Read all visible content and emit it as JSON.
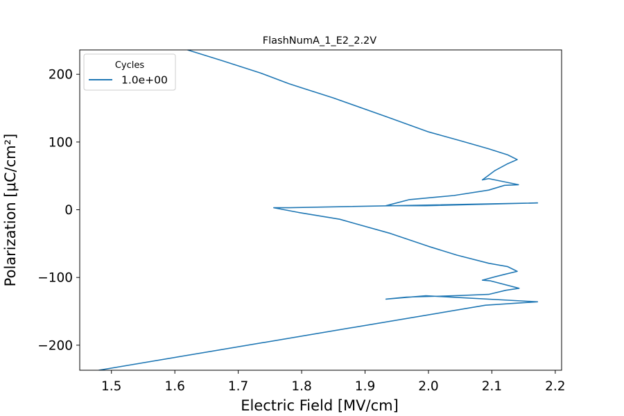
{
  "chart_data": {
    "type": "line",
    "title": "FlashNumA_1_E2_2.2V",
    "xlabel": "Electric Field [MV/cm]",
    "ylabel": "Polarization [μC/cm²]",
    "xlim": [
      1.45,
      2.21
    ],
    "ylim": [
      -237,
      236
    ],
    "xticks": [
      1.5,
      1.6,
      1.7,
      1.8,
      1.9,
      2.0,
      2.1,
      2.2
    ],
    "xtick_labels": [
      "1.5",
      "1.6",
      "1.7",
      "1.8",
      "1.9",
      "2.0",
      "2.1",
      "2.2"
    ],
    "yticks": [
      200,
      100,
      0,
      -100,
      -200
    ],
    "ytick_labels": [
      "200",
      "100",
      "0",
      "−100",
      "−200"
    ],
    "grid": false,
    "legend": {
      "title": "Cycles",
      "placement": "upper-left",
      "entries": [
        "1.0e+00"
      ]
    },
    "series": [
      {
        "name": "1.0e+00",
        "color": "#1f77b4",
        "x": [
          1.62,
          1.675,
          1.735,
          1.78,
          1.85,
          1.935,
          2.0,
          2.05,
          2.095,
          2.125,
          2.14,
          2.125,
          2.105,
          2.085,
          2.095,
          2.142,
          2.12,
          2.095,
          2.04,
          1.97,
          1.933,
          1.995,
          2.172,
          1.78,
          1.756,
          1.795,
          1.86,
          1.94,
          2.0,
          2.045,
          2.095,
          2.125,
          2.14,
          2.122,
          2.105,
          2.085,
          2.098,
          2.143,
          2.122,
          2.095,
          2.04,
          1.965,
          1.933,
          1.996,
          2.172,
          2.09,
          1.48
        ],
        "y": [
          236,
          220,
          202,
          186,
          165,
          137,
          115,
          102,
          90,
          81,
          74,
          68,
          58,
          44,
          46,
          37,
          36,
          29,
          21,
          15,
          6,
          6,
          10,
          3,
          3,
          -4,
          -14,
          -35,
          -54,
          -67,
          -79,
          -84,
          -91,
          -95,
          -99,
          -104,
          -105,
          -116,
          -119,
          -125,
          -127,
          -129,
          -132,
          -127,
          -136,
          -141,
          -237
        ]
      }
    ]
  }
}
